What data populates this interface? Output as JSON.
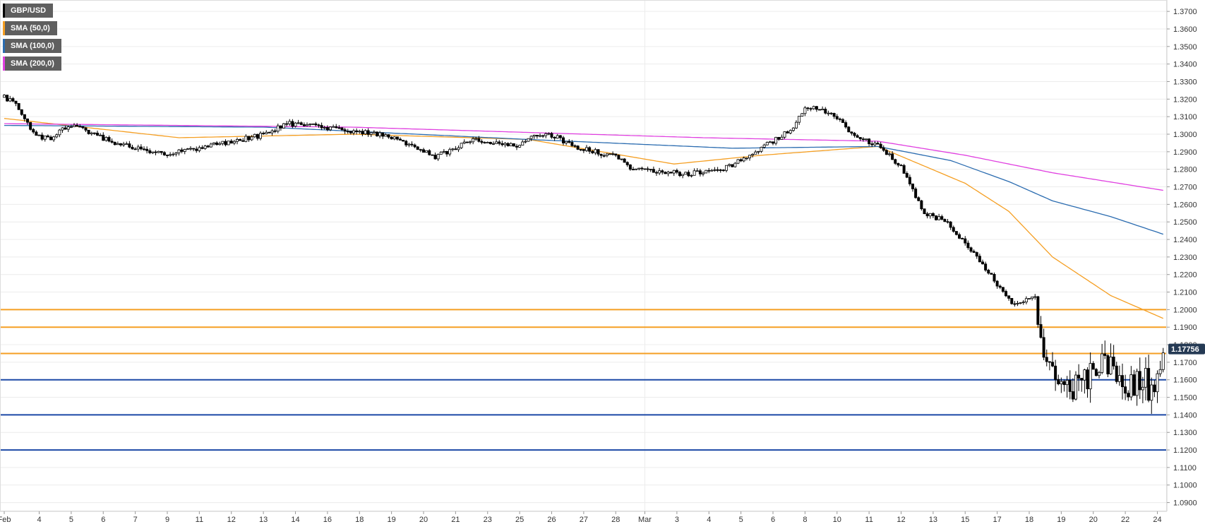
{
  "chart_data": {
    "type": "candlestick",
    "symbol": "GBP/USD",
    "ylim": [
      1.085,
      1.3765
    ],
    "y_ticks": [
      "1.3700",
      "1.3600",
      "1.3500",
      "1.3400",
      "1.3300",
      "1.3200",
      "1.3100",
      "1.3000",
      "1.2900",
      "1.2800",
      "1.2700",
      "1.2600",
      "1.2500",
      "1.2400",
      "1.2300",
      "1.2200",
      "1.2100",
      "1.2000",
      "1.1900",
      "1.1800",
      "1.1700",
      "1.1600",
      "1.1500",
      "1.1400",
      "1.1300",
      "1.1200",
      "1.1100",
      "1.1000",
      "1.0900"
    ],
    "x_ticks": [
      {
        "label": "Feb",
        "i": 0
      },
      {
        "label": "4",
        "i": 12
      },
      {
        "label": "5",
        "i": 23
      },
      {
        "label": "6",
        "i": 34
      },
      {
        "label": "7",
        "i": 45
      },
      {
        "label": "9",
        "i": 56
      },
      {
        "label": "11",
        "i": 67
      },
      {
        "label": "12",
        "i": 78
      },
      {
        "label": "13",
        "i": 89
      },
      {
        "label": "14",
        "i": 100
      },
      {
        "label": "16",
        "i": 111
      },
      {
        "label": "18",
        "i": 122
      },
      {
        "label": "19",
        "i": 133
      },
      {
        "label": "20",
        "i": 144
      },
      {
        "label": "21",
        "i": 155
      },
      {
        "label": "23",
        "i": 166
      },
      {
        "label": "25",
        "i": 177
      },
      {
        "label": "26",
        "i": 188
      },
      {
        "label": "27",
        "i": 199
      },
      {
        "label": "28",
        "i": 210
      },
      {
        "label": "Mar",
        "i": 220
      },
      {
        "label": "3",
        "i": 231
      },
      {
        "label": "4",
        "i": 242
      },
      {
        "label": "5",
        "i": 253
      },
      {
        "label": "6",
        "i": 264
      },
      {
        "label": "8",
        "i": 275
      },
      {
        "label": "10",
        "i": 286
      },
      {
        "label": "11",
        "i": 297
      },
      {
        "label": "12",
        "i": 308
      },
      {
        "label": "13",
        "i": 319
      },
      {
        "label": "15",
        "i": 330
      },
      {
        "label": "17",
        "i": 341
      },
      {
        "label": "18",
        "i": 352
      },
      {
        "label": "19",
        "i": 363
      },
      {
        "label": "20",
        "i": 374
      },
      {
        "label": "22",
        "i": 385
      },
      {
        "label": "24",
        "i": 396
      }
    ],
    "candle_count": 400,
    "close_anchors": [
      [
        0,
        1.321
      ],
      [
        3,
        1.319
      ],
      [
        10,
        1.3
      ],
      [
        16,
        1.297
      ],
      [
        20,
        1.303
      ],
      [
        26,
        1.305
      ],
      [
        30,
        1.3
      ],
      [
        40,
        1.294
      ],
      [
        54,
        1.289
      ],
      [
        70,
        1.293
      ],
      [
        90,
        1.3
      ],
      [
        97,
        1.306
      ],
      [
        106,
        1.305
      ],
      [
        118,
        1.302
      ],
      [
        132,
        1.299
      ],
      [
        148,
        1.287
      ],
      [
        162,
        1.297
      ],
      [
        176,
        1.294
      ],
      [
        186,
        1.301
      ],
      [
        196,
        1.293
      ],
      [
        210,
        1.287
      ],
      [
        216,
        1.28
      ],
      [
        226,
        1.279
      ],
      [
        234,
        1.277
      ],
      [
        248,
        1.281
      ],
      [
        260,
        1.292
      ],
      [
        270,
        1.302
      ],
      [
        276,
        1.316
      ],
      [
        284,
        1.312
      ],
      [
        292,
        1.299
      ],
      [
        300,
        1.294
      ],
      [
        308,
        1.281
      ],
      [
        316,
        1.255
      ],
      [
        324,
        1.25
      ],
      [
        336,
        1.226
      ],
      [
        346,
        1.203
      ],
      [
        354,
        1.207
      ],
      [
        357,
        1.175
      ],
      [
        362,
        1.152
      ],
      [
        370,
        1.158
      ],
      [
        376,
        1.168
      ],
      [
        380,
        1.17
      ],
      [
        386,
        1.157
      ],
      [
        392,
        1.16
      ],
      [
        394,
        1.15
      ],
      [
        398,
        1.1776
      ]
    ],
    "sma_50": [
      [
        0,
        1.309
      ],
      [
        60,
        1.298
      ],
      [
        120,
        1.3
      ],
      [
        180,
        1.297
      ],
      [
        230,
        1.283
      ],
      [
        260,
        1.288
      ],
      [
        300,
        1.293
      ],
      [
        330,
        1.272
      ],
      [
        345,
        1.256
      ],
      [
        360,
        1.23
      ],
      [
        380,
        1.208
      ],
      [
        398,
        1.195
      ]
    ],
    "sma_100": [
      [
        0,
        1.305
      ],
      [
        90,
        1.304
      ],
      [
        180,
        1.297
      ],
      [
        250,
        1.292
      ],
      [
        300,
        1.293
      ],
      [
        325,
        1.285
      ],
      [
        345,
        1.273
      ],
      [
        360,
        1.262
      ],
      [
        380,
        1.253
      ],
      [
        398,
        1.243
      ]
    ],
    "sma_200": [
      [
        0,
        1.306
      ],
      [
        120,
        1.304
      ],
      [
        240,
        1.298
      ],
      [
        300,
        1.296
      ],
      [
        330,
        1.288
      ],
      [
        360,
        1.278
      ],
      [
        398,
        1.268
      ]
    ],
    "horizontal_levels": [
      {
        "value": 1.2,
        "color": "#f59f23"
      },
      {
        "value": 1.19,
        "color": "#f59f23"
      },
      {
        "value": 1.175,
        "color": "#f59f23"
      },
      {
        "value": 1.16,
        "color": "#1b48a6"
      },
      {
        "value": 1.14,
        "color": "#1b48a6"
      },
      {
        "value": 1.12,
        "color": "#1b48a6"
      }
    ],
    "current_price": 1.17756,
    "current_price_label": "1.17756",
    "legend": [
      {
        "label": "GBP/USD",
        "color": "#000000"
      },
      {
        "label": "SMA (50,0)",
        "color": "#f59f23"
      },
      {
        "label": "SMA (100,0)",
        "color": "#2b6cb0"
      },
      {
        "label": "SMA (200,0)",
        "color": "#e040e0"
      }
    ],
    "colors": {
      "sma_50": "#f59f23",
      "sma_100": "#2b6cb0",
      "sma_200": "#e040e0",
      "grid": "#ececec",
      "axis_text": "#333333",
      "price_tag": "#253a54"
    }
  }
}
